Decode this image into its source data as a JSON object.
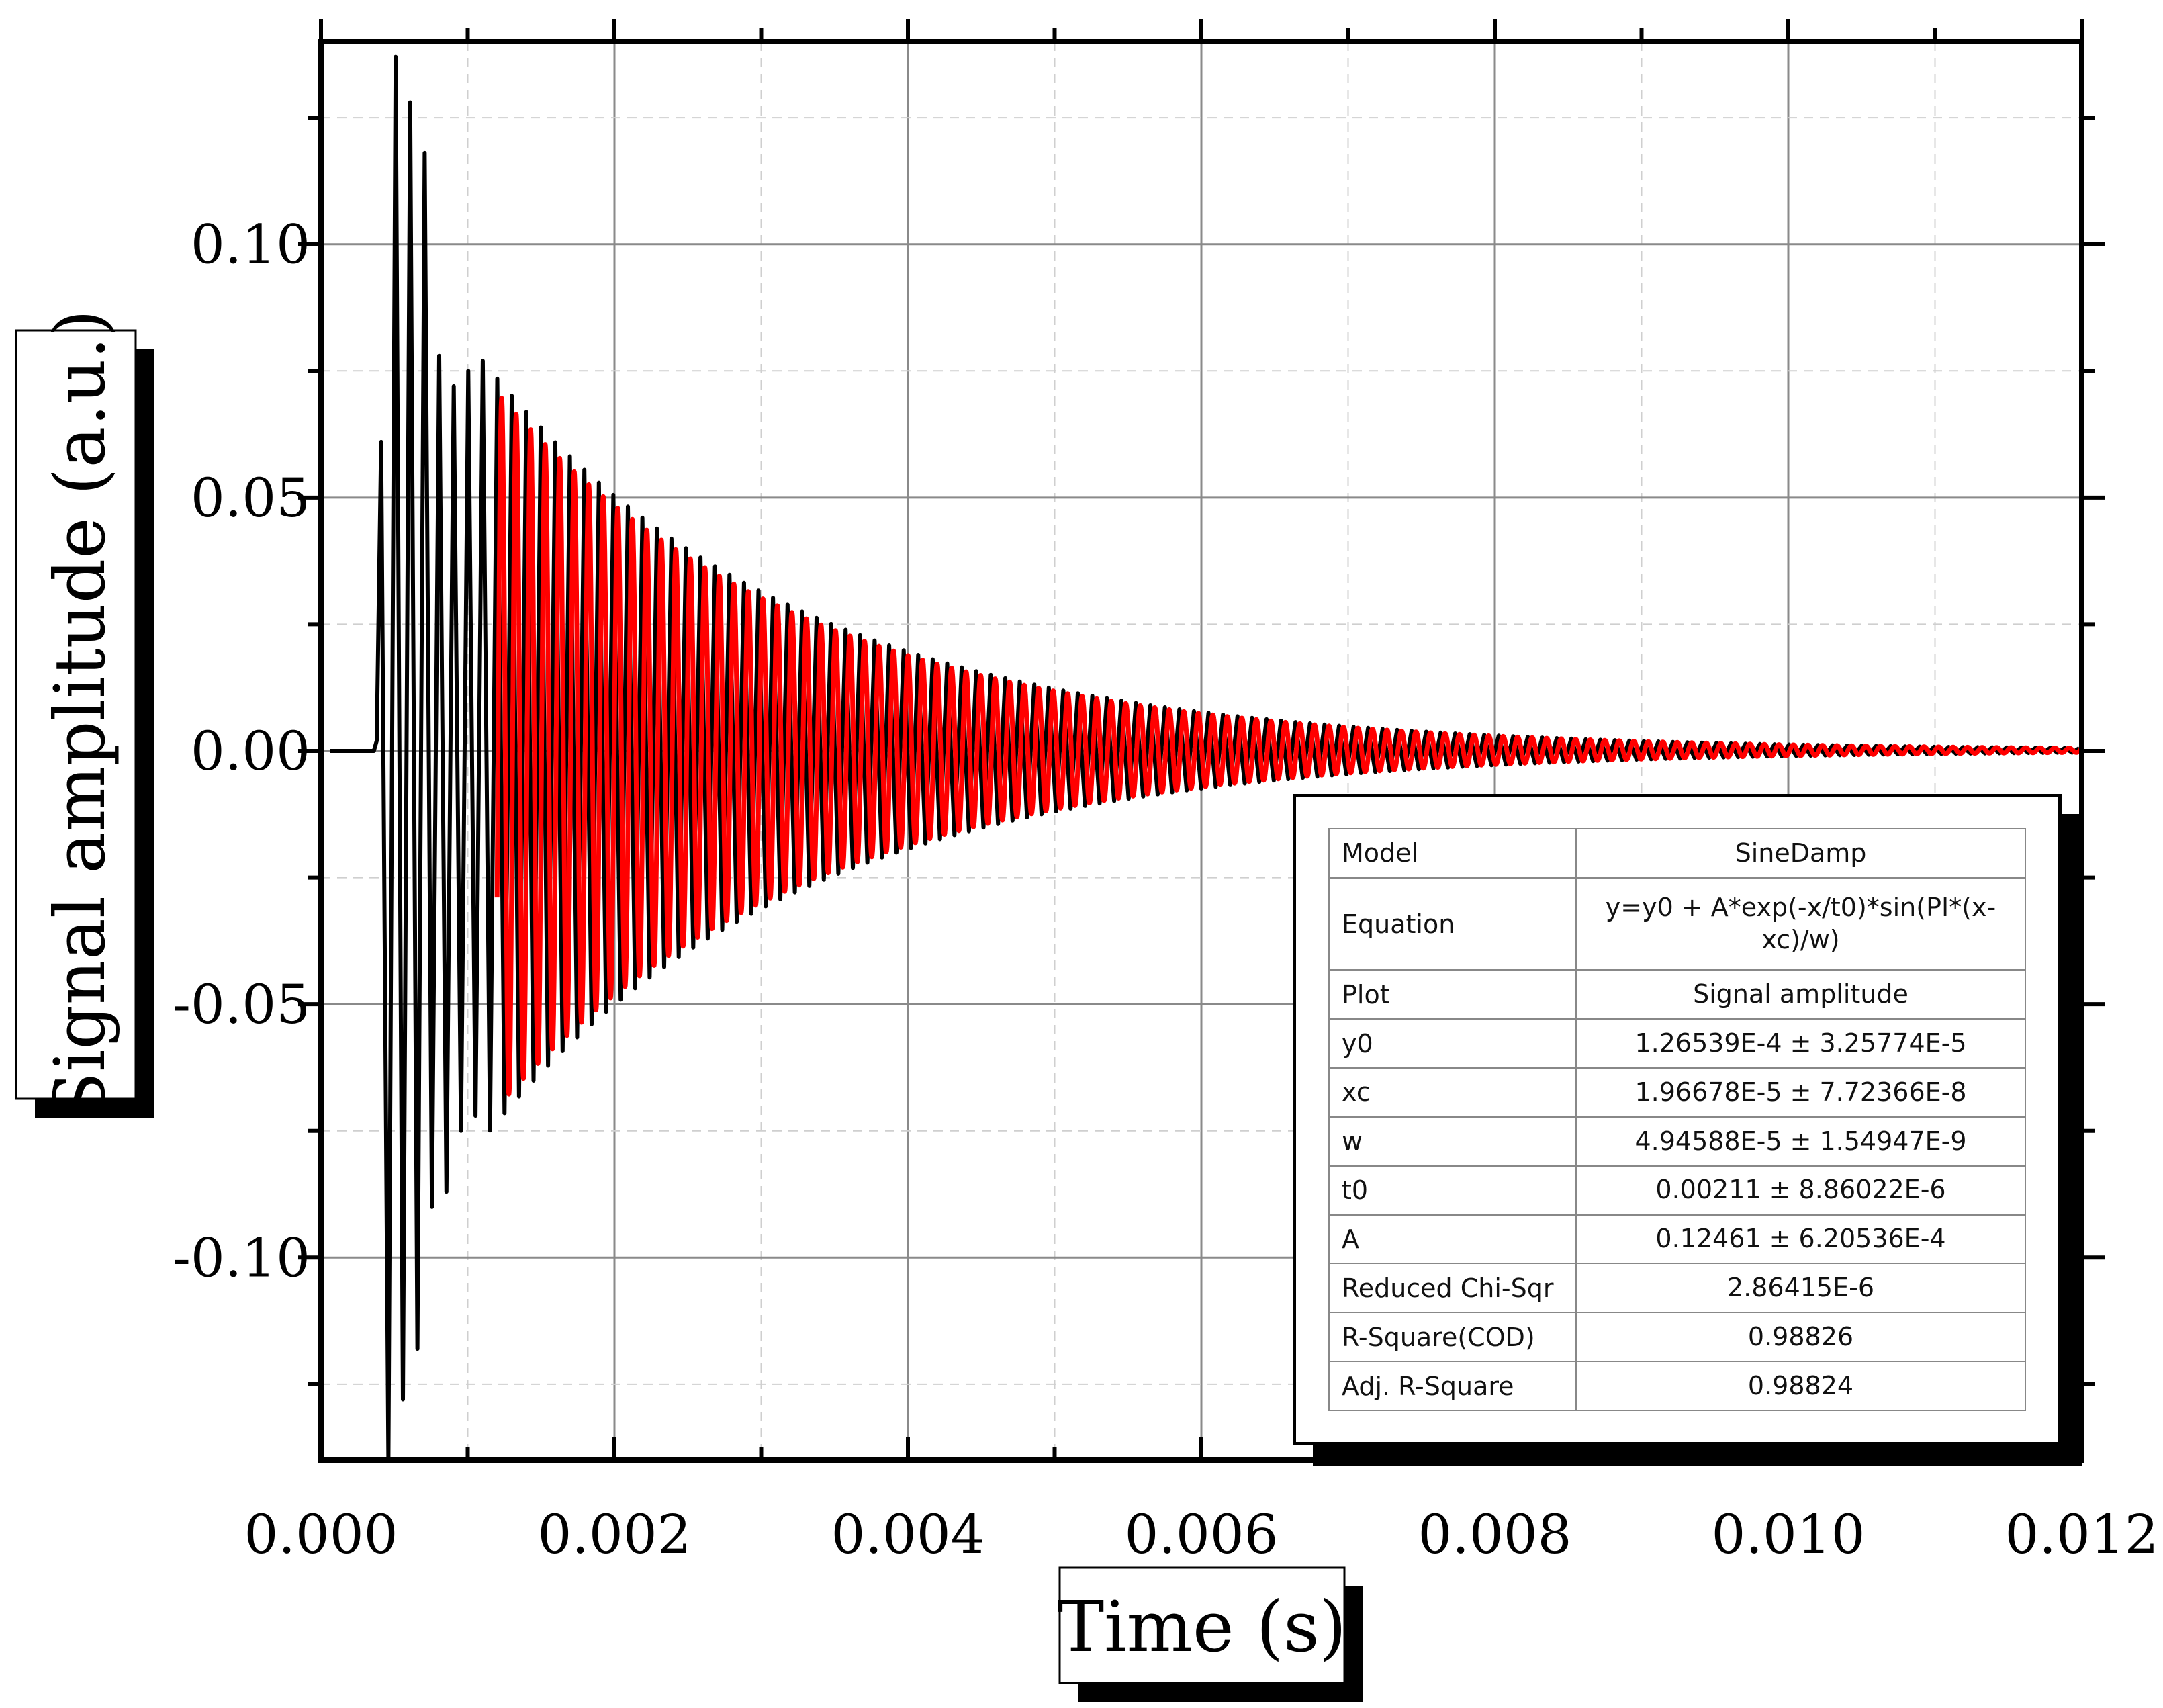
{
  "chart_data": {
    "type": "line",
    "xlabel": "Time (s)",
    "ylabel": "Signal amplitude (a.u.)",
    "xlim": [
      0.0,
      0.012
    ],
    "ylim": [
      -0.14,
      0.14
    ],
    "x_ticks": [
      "0.000",
      "0.002",
      "0.004",
      "0.006",
      "0.008",
      "0.010",
      "0.012"
    ],
    "y_ticks": [
      "0.10",
      "0.05",
      "0.00",
      "-0.05",
      "-0.10"
    ],
    "x_tick_values": [
      0.0,
      0.002,
      0.004,
      0.006,
      0.008,
      0.01,
      0.012
    ],
    "y_tick_values": [
      0.1,
      0.05,
      0.0,
      -0.05,
      -0.1
    ],
    "grid": true,
    "series": [
      {
        "color": "#000000",
        "description": "measured signal: flat near 0 until ~0.0004 s, then large oscillations (peaks ~0.137 / ~-0.14 near 0.0005 s) decaying toward 0 by 0.012 s",
        "onset": 0.00038,
        "peak_max": 0.137,
        "peak_min": -0.14,
        "x_end": 0.012
      },
      {
        "color": "#ff0000",
        "description": "SineDamp fit, from ~0.0012 s to 0.012 s",
        "x_start": 0.0012,
        "x_end": 0.012,
        "params": {
          "y0": 0.000126539,
          "xc": 1.96678e-05,
          "w": 4.94588e-05,
          "t0": 0.00211,
          "A": 0.12461
        }
      }
    ],
    "fit_table": [
      {
        "key": "Model",
        "value": "SineDamp"
      },
      {
        "key": "Equation",
        "value": "y=y0 + A*exp(-x/t0)*sin(PI*(x-xc)/w)"
      },
      {
        "key": "Plot",
        "value": "Signal amplitude"
      },
      {
        "key": "y0",
        "value": "1.26539E-4 ± 3.25774E-5"
      },
      {
        "key": "xc",
        "value": "1.96678E-5 ± 7.72366E-8"
      },
      {
        "key": "w",
        "value": "4.94588E-5 ± 1.54947E-9"
      },
      {
        "key": "t0",
        "value": "0.00211 ± 8.86022E-6"
      },
      {
        "key": "A",
        "value": "0.12461 ± 6.20536E-4"
      },
      {
        "key": "Reduced Chi-Sqr",
        "value": "2.86415E-6"
      },
      {
        "key": "R-Square(COD)",
        "value": "0.98826"
      },
      {
        "key": "Adj. R-Square",
        "value": "0.98824"
      }
    ]
  }
}
